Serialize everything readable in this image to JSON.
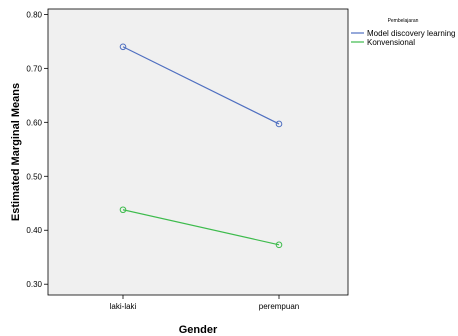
{
  "chart_data": {
    "type": "line",
    "title": "",
    "xlabel": "Gender",
    "ylabel": "Estimated Marginal Means",
    "categories": [
      "laki-laki",
      "perempuan"
    ],
    "ylim": [
      0.28,
      0.81
    ],
    "yticks": [
      "0.30",
      "0.40",
      "0.50",
      "0.60",
      "0.70",
      "0.80"
    ],
    "grid": false,
    "legend_title": "Pembelajaran",
    "legend_position": "right",
    "series": [
      {
        "name": "Model discovery learning",
        "values": [
          0.74,
          0.597
        ],
        "color": "#4f6fc0"
      },
      {
        "name": "Konvensional",
        "values": [
          0.438,
          0.373
        ],
        "color": "#3dbb4c"
      }
    ]
  }
}
